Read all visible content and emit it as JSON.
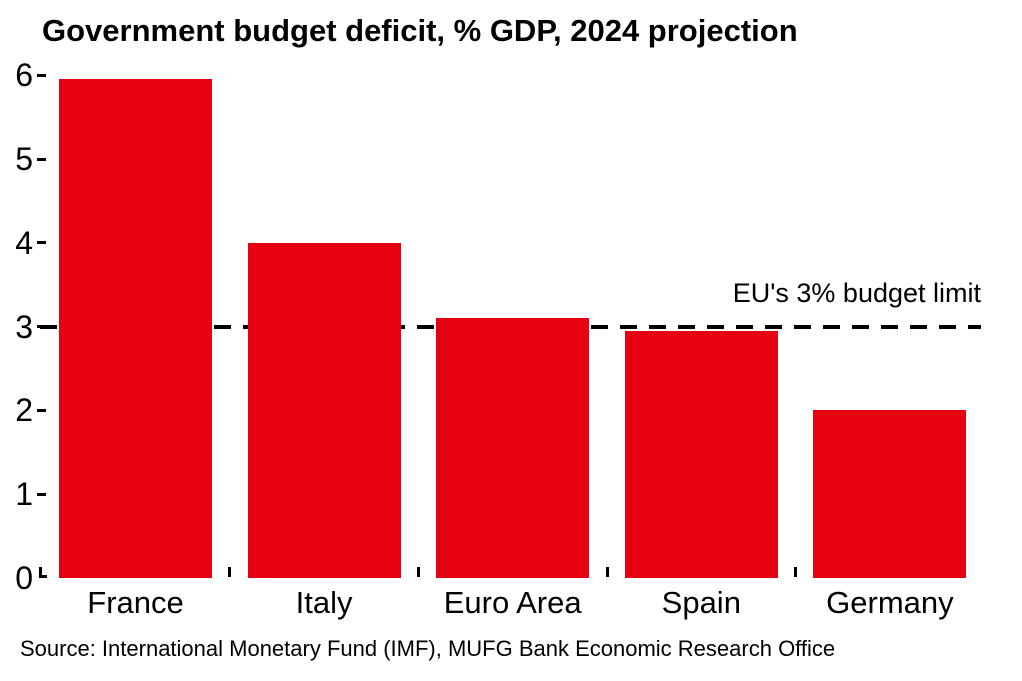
{
  "chart_data": {
    "type": "bar",
    "title": "Government budget deficit, % GDP, 2024 projection",
    "categories": [
      "France",
      "Italy",
      "Euro Area",
      "Spain",
      "Germany"
    ],
    "values": [
      5.95,
      4.0,
      3.1,
      2.95,
      2.0
    ],
    "bar_color": "#e60012",
    "xlabel": "",
    "ylabel": "",
    "ylim": [
      0,
      6
    ],
    "yticks": [
      0,
      1,
      2,
      3,
      4,
      5,
      6
    ],
    "grid": "off",
    "legend": "none",
    "reference_line": {
      "value": 3,
      "style": "dashed",
      "color": "#000000",
      "label": "EU's 3% budget limit"
    }
  },
  "source": "Source: International Monetary Fund (IMF), MUFG Bank Economic Research Office"
}
